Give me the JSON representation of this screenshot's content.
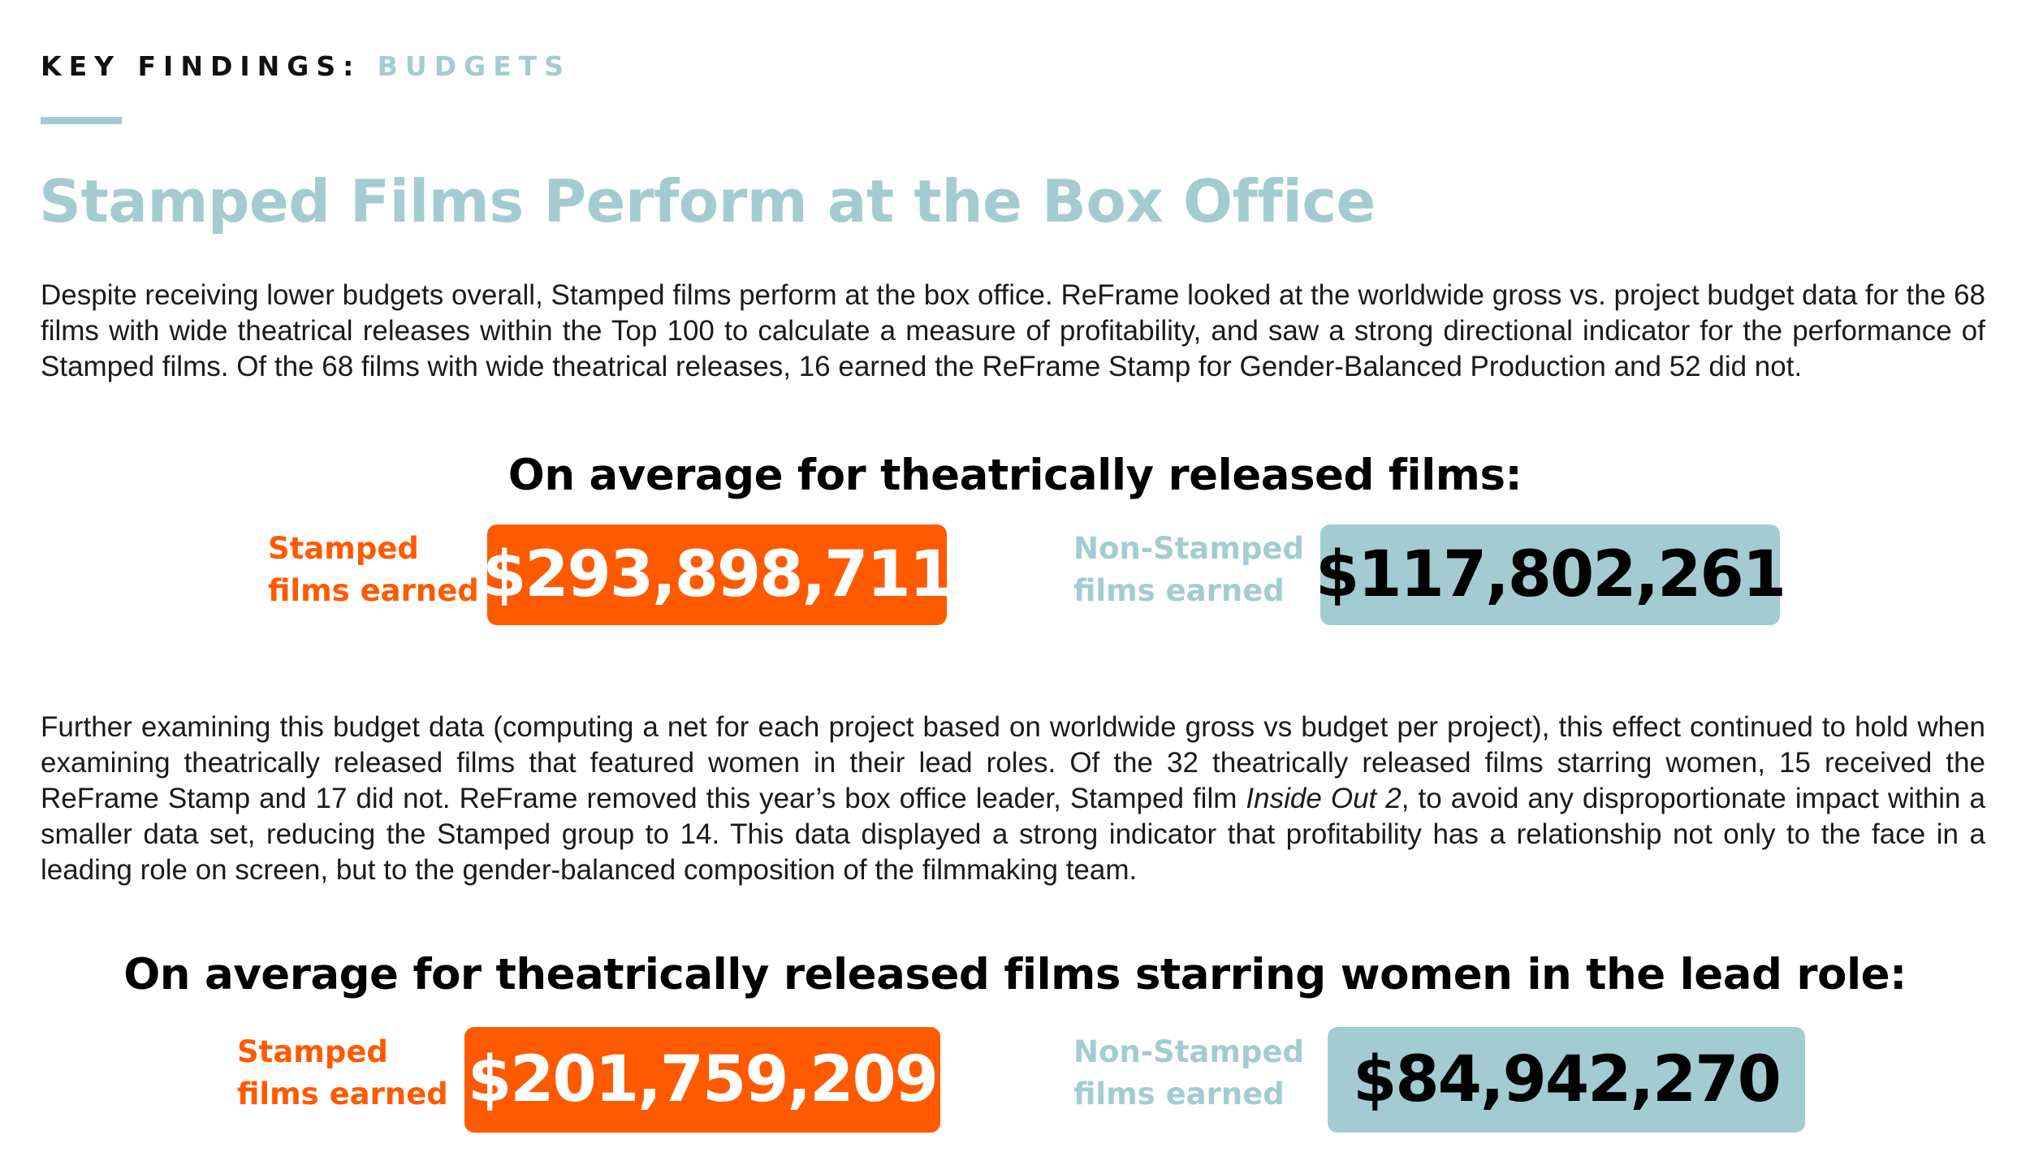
{
  "header": {
    "eyebrow_prefix": "KEY FINDINGS:",
    "eyebrow_topic": "BUDGETS",
    "title": "Stamped Films Perform at the Box Office"
  },
  "paragraph1": "Despite receiving lower budgets overall, Stamped films perform at the box office. ReFrame looked at the worldwide gross vs. project budget data for the 68 films with wide theatrical releases within the Top 100 to calculate a measure of profitability, and saw a strong directional indicator for the performance of Stamped films. Of the 68 films with wide theatrical releases, 16 earned the ReFrame Stamp for Gender-Balanced Production and 52 did not.",
  "section1": {
    "heading": "On average for theatrically released films:",
    "stamped_label_line1": "Stamped",
    "stamped_label_line2": "films earned",
    "stamped_value": "$293,898,711",
    "nonstamped_label_line1": "Non-Stamped",
    "nonstamped_label_line2": "films earned",
    "nonstamped_value": "$117,802,261"
  },
  "paragraph2": {
    "before_italic": "Further examining this budget data (computing a net for each project based on worldwide gross vs budget per project), this effect continued to hold when examining theatrically released films that featured women in their lead roles. Of the 32 theatrically released films starring women, 15 received the ReFrame Stamp and 17 did not. ReFrame removed this year’s box office leader, Stamped film ",
    "italic": "Inside Out 2",
    "after_italic": ", to avoid any disproportionate impact within a smaller data set, reducing the Stamped group to 14. This data displayed a strong indicator that profitability has a relationship not only to the face in a leading role on screen, but to the gender-balanced composition of the filmmaking team."
  },
  "section2": {
    "heading": "On average for theatrically released films starring women in the lead role:",
    "stamped_label_line1": "Stamped",
    "stamped_label_line2": "films earned",
    "stamped_value": "$201,759,209",
    "nonstamped_label_line1": "Non-Stamped",
    "nonstamped_label_line2": "films earned",
    "nonstamped_value": "$84,942,270"
  },
  "colors": {
    "accent_blue": "#a3ccd2",
    "accent_orange": "#ff5a00",
    "text": "#1a1a1a"
  }
}
